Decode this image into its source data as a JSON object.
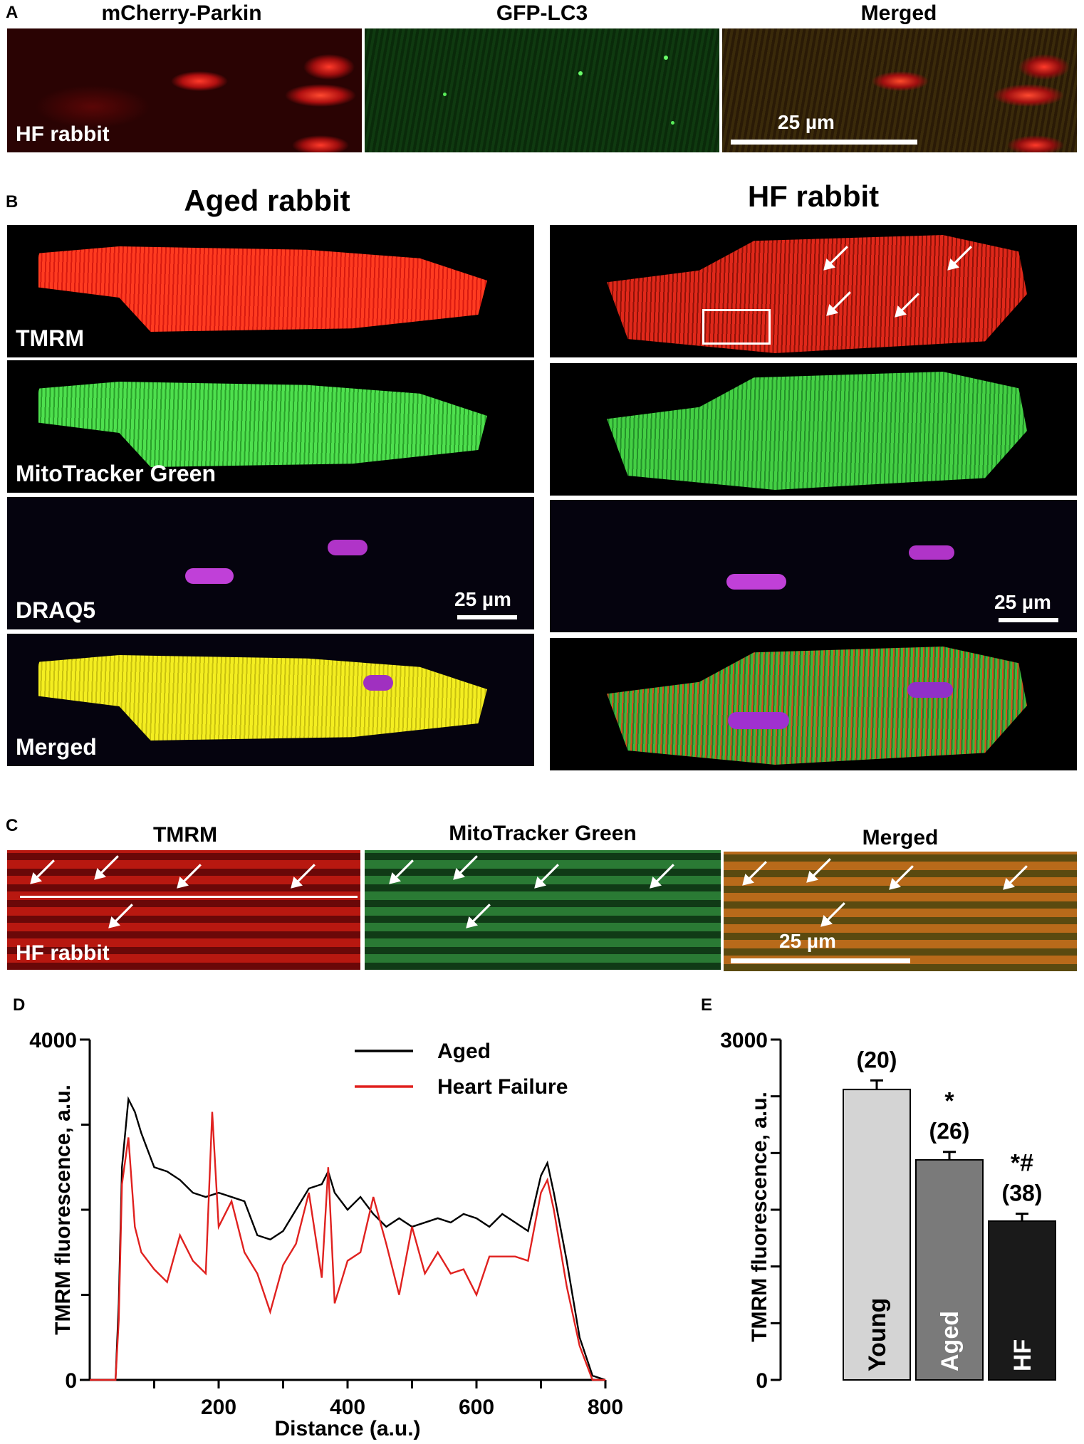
{
  "panelA": {
    "letter": "A",
    "titles": [
      "mCherry-Parkin",
      "GFP-LC3",
      "Merged"
    ],
    "label": "HF rabbit",
    "scale": "25 µm"
  },
  "panelB": {
    "letter": "B",
    "aged_title": "Aged rabbit",
    "hf_title": "HF rabbit",
    "row_labels": [
      "TMRM",
      "MitoTracker Green",
      "DRAQ5",
      "Merged"
    ],
    "scale": "25 µm"
  },
  "panelC": {
    "letter": "C",
    "titles": [
      "TMRM",
      "MitoTracker Green",
      "Merged"
    ],
    "label": "HF rabbit",
    "scale": "25 µm"
  },
  "panelD": {
    "letter": "D",
    "chart_data": {
      "type": "line",
      "xlabel": "Distance (a.u.)",
      "ylabel": "TMRM fluorescence, a.u.",
      "xlim": [
        0,
        800
      ],
      "ylim": [
        0,
        4000
      ],
      "xticks": [
        200,
        400,
        600,
        800
      ],
      "yticks": [
        0,
        4000
      ],
      "legend": "top-right",
      "series": [
        {
          "name": "Aged",
          "color": "#000000",
          "x": [
            0,
            20,
            40,
            45,
            50,
            60,
            70,
            80,
            100,
            120,
            140,
            160,
            180,
            200,
            220,
            240,
            260,
            280,
            300,
            320,
            340,
            360,
            370,
            380,
            400,
            420,
            440,
            460,
            480,
            500,
            520,
            540,
            560,
            580,
            600,
            620,
            640,
            660,
            680,
            700,
            710,
            720,
            740,
            760,
            780,
            800
          ],
          "y": [
            0,
            0,
            0,
            900,
            2500,
            3300,
            3150,
            2900,
            2500,
            2450,
            2350,
            2200,
            2150,
            2200,
            2150,
            2100,
            1700,
            1650,
            1750,
            2000,
            2250,
            2300,
            2450,
            2200,
            2000,
            2150,
            1950,
            1800,
            1900,
            1800,
            1850,
            1900,
            1850,
            1950,
            1900,
            1800,
            1950,
            1850,
            1750,
            2400,
            2550,
            2200,
            1400,
            500,
            50,
            0
          ]
        },
        {
          "name": "Heart Failure",
          "color": "#e0211f",
          "x": [
            0,
            20,
            40,
            45,
            50,
            60,
            70,
            80,
            100,
            120,
            140,
            160,
            180,
            190,
            200,
            220,
            240,
            260,
            280,
            300,
            320,
            340,
            360,
            370,
            380,
            400,
            420,
            440,
            460,
            480,
            500,
            520,
            540,
            560,
            580,
            600,
            620,
            640,
            660,
            680,
            700,
            710,
            720,
            740,
            760,
            780,
            800
          ],
          "y": [
            0,
            0,
            0,
            700,
            2300,
            2850,
            1800,
            1500,
            1300,
            1150,
            1700,
            1400,
            1250,
            3150,
            1800,
            2100,
            1500,
            1250,
            800,
            1350,
            1600,
            2200,
            1200,
            2500,
            900,
            1400,
            1500,
            2150,
            1600,
            1000,
            1800,
            1250,
            1500,
            1250,
            1300,
            1000,
            1450,
            1450,
            1450,
            1400,
            2200,
            2350,
            2000,
            1100,
            400,
            0,
            0
          ]
        }
      ]
    }
  },
  "panelE": {
    "letter": "E",
    "chart_data": {
      "type": "bar",
      "categories": [
        "Young",
        "Aged",
        "HF"
      ],
      "values": [
        2560,
        1940,
        1400
      ],
      "errors": [
        80,
        70,
        65
      ],
      "n_labels": [
        "(20)",
        "(26)",
        "(38)"
      ],
      "sig_labels": [
        "",
        "*",
        "*#"
      ],
      "colors": [
        "#d4d4d4",
        "#7a7a7a",
        "#1a1a1a"
      ],
      "ylabel": "TMRM fluorescence, a.u.",
      "ylim": [
        0,
        3000
      ],
      "yticks": [
        0,
        3000
      ]
    }
  }
}
